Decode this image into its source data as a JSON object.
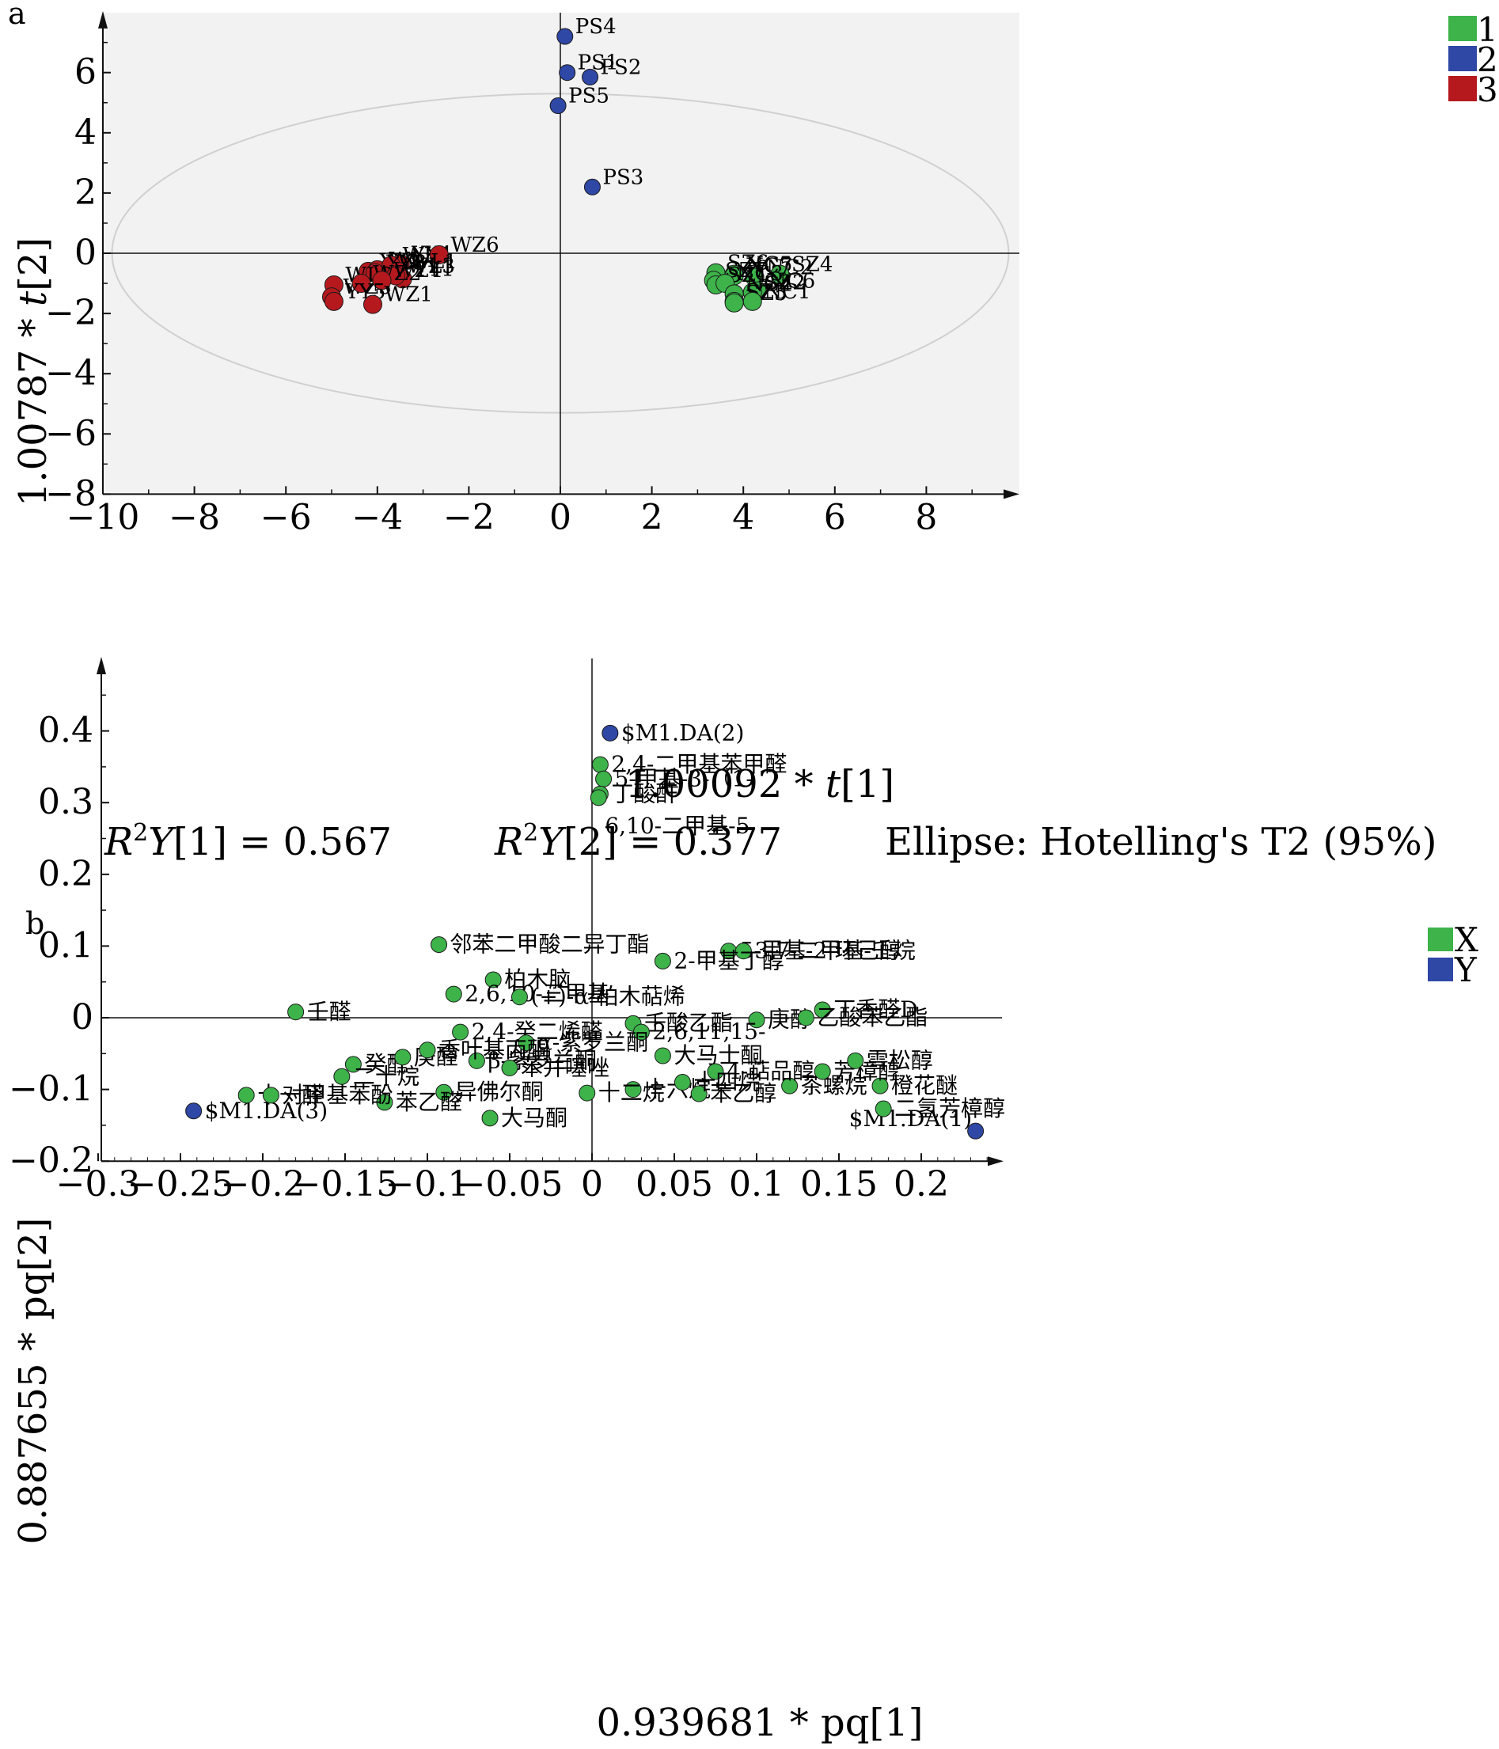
{
  "chart_data": [
    {
      "panel_label": "a",
      "type": "scatter",
      "xlabel_prefix": "1.00092 * ",
      "xlabel_var": "t",
      "xlabel_suffix": "[1]",
      "ylabel_prefix": "1.00787 * ",
      "ylabel_var": "t",
      "ylabel_suffix": "[2]",
      "xlim": [
        -10,
        10
      ],
      "ylim": [
        -8,
        8
      ],
      "xticks": [
        -10,
        -8,
        -6,
        -4,
        -2,
        0,
        2,
        4,
        6,
        8
      ],
      "yticks": [
        -8,
        -6,
        -4,
        -2,
        0,
        2,
        4,
        6
      ],
      "ellipse": {
        "rx": 9.8,
        "ry": 5.3
      },
      "legend": [
        {
          "name": "1",
          "color": "#3db34a"
        },
        {
          "name": "2",
          "color": "#2f47a5"
        },
        {
          "name": "3",
          "color": "#b5191e"
        }
      ],
      "footer": [
        {
          "id": "r2y1",
          "prefix": "R",
          "sup": "2",
          "var": "Y",
          "rest": "[1] = 0.567"
        },
        {
          "id": "r2y2",
          "prefix": "R",
          "sup": "2",
          "var": "Y",
          "rest": "[2] = 0.377"
        },
        {
          "id": "ellipse-note",
          "text": "Ellipse: Hotelling's T2 (95%)"
        }
      ],
      "series": [
        {
          "group": "1",
          "color": "#3db34a",
          "points": [
            {
              "label": "SZ6",
              "x": 3.4,
              "y": -0.65
            },
            {
              "label": "NC5",
              "x": 3.8,
              "y": -0.7
            },
            {
              "label": "NC2",
              "x": 4.25,
              "y": -0.8
            },
            {
              "label": "SZ4",
              "x": 4.8,
              "y": -0.7
            },
            {
              "label": "NC7",
              "x": 3.8,
              "y": -0.75
            },
            {
              "label": "SZ7",
              "x": 3.35,
              "y": -0.9
            },
            {
              "label": "SZ1",
              "x": 3.4,
              "y": -1.05
            },
            {
              "label": "NC6",
              "x": 4.3,
              "y": -1.25
            },
            {
              "label": "SZ2",
              "x": 4.2,
              "y": -1.3
            },
            {
              "label": "NC3",
              "x": 3.6,
              "y": -1.0
            },
            {
              "label": "NC4",
              "x": 3.8,
              "y": -1.35
            },
            {
              "label": "SZ3",
              "x": 3.8,
              "y": -1.6
            },
            {
              "label": "SZ5",
              "x": 3.8,
              "y": -1.65
            },
            {
              "label": "NC1",
              "x": 4.2,
              "y": -1.6
            }
          ]
        },
        {
          "group": "2",
          "color": "#2f47a5",
          "points": [
            {
              "label": "PS4",
              "x": 0.1,
              "y": 7.2
            },
            {
              "label": "PS1",
              "x": 0.15,
              "y": 6.0
            },
            {
              "label": "PS2",
              "x": 0.65,
              "y": 5.85
            },
            {
              "label": "PS5",
              "x": -0.05,
              "y": 4.9
            },
            {
              "label": "PS3",
              "x": 0.7,
              "y": 2.2
            }
          ]
        },
        {
          "group": "3",
          "color": "#b5191e",
          "points": [
            {
              "label": "YY2",
              "x": -4.2,
              "y": -0.6
            },
            {
              "label": "YY4",
              "x": -3.5,
              "y": -0.35
            },
            {
              "label": "WL4",
              "x": -4.0,
              "y": -0.55
            },
            {
              "label": "WL5",
              "x": -3.7,
              "y": -0.4
            },
            {
              "label": "WZ6",
              "x": -2.65,
              "y": -0.05
            },
            {
              "label": "YY3",
              "x": -4.05,
              "y": -0.65
            },
            {
              "label": "WL1",
              "x": -3.55,
              "y": -0.6
            },
            {
              "label": "YY1",
              "x": -3.45,
              "y": -0.85
            },
            {
              "label": "WL2",
              "x": -4.95,
              "y": -1.05
            },
            {
              "label": "WL3",
              "x": -3.6,
              "y": -0.75
            },
            {
              "label": "WZ3",
              "x": -5.0,
              "y": -1.45
            },
            {
              "label": "WZ2",
              "x": -4.35,
              "y": -1.0
            },
            {
              "label": "WZ4",
              "x": -3.9,
              "y": -0.9
            },
            {
              "label": "YY5",
              "x": -4.95,
              "y": -1.6
            },
            {
              "label": "WZ1",
              "x": -4.1,
              "y": -1.7
            }
          ]
        }
      ]
    },
    {
      "panel_label": "b",
      "type": "scatter",
      "xlabel": "0.939681 * pq[1]",
      "ylabel": "0.887655 * pq[2]",
      "xlim": [
        -0.3,
        0.25
      ],
      "ylim": [
        -0.2,
        0.5
      ],
      "xticks": [
        -0.3,
        -0.25,
        -0.2,
        -0.15,
        -0.1,
        -0.05,
        0,
        0.05,
        0.1,
        0.15,
        0.2
      ],
      "xticklabels": [
        "−0.3",
        "−0.25",
        "−0.2",
        "−0.15",
        "−0.1",
        "−0.05",
        "0",
        "0.05",
        "0.1",
        "0.15",
        "0.2"
      ],
      "yticks": [
        -0.2,
        -0.1,
        0,
        0.1,
        0.2,
        0.3,
        0.4
      ],
      "yticklabels": [
        "−0.2",
        "−0.1",
        "0",
        "0.1",
        "0.2",
        "0.3",
        "0.4"
      ],
      "legend": [
        {
          "name": "X",
          "color": "#3db34a"
        },
        {
          "name": "Y",
          "color": "#2f47a5"
        }
      ],
      "series": [
        {
          "name": "Y",
          "color": "#2f47a5",
          "points": [
            {
              "label": "$M1.DA(2)",
              "x": 0.011,
              "y": 0.397
            },
            {
              "label": "$M1.DA(3)",
              "x": -0.242,
              "y": -0.13
            },
            {
              "label": "$M1.DA(1)",
              "x": 0.233,
              "y": -0.158
            }
          ]
        },
        {
          "name": "X",
          "color": "#3db34a",
          "points": [
            {
              "label": "2,4-二甲基苯甲醛",
              "x": 0.005,
              "y": 0.353
            },
            {
              "label": "5-甲基-3-（1-",
              "x": 0.007,
              "y": 0.333
            },
            {
              "label": "丁酸酐",
              "x": 0.005,
              "y": 0.312
            },
            {
              "label": "6,10-二甲基-5",
              "x": 0.004,
              "y": 0.307
            },
            {
              "label": "邻苯二甲酸二异丁酯",
              "x": -0.093,
              "y": 0.102
            },
            {
              "label": "柏木脑",
              "x": -0.06,
              "y": 0.053
            },
            {
              "label": "2,6,10-三甲基",
              "x": -0.084,
              "y": 0.033
            },
            {
              "label": "(+)-α-柏木萜烯",
              "x": -0.044,
              "y": 0.029
            },
            {
              "label": "壬醛",
              "x": -0.18,
              "y": 0.008
            },
            {
              "label": "5-甲基-2-环己醇",
              "x": 0.083,
              "y": 0.093
            },
            {
              "label": "3,7-二甲基-壬烷",
              "x": 0.092,
              "y": 0.093
            },
            {
              "label": "2-甲基丁醇",
              "x": 0.043,
              "y": 0.079
            },
            {
              "label": "丁香醛D",
              "x": 0.14,
              "y": 0.011
            },
            {
              "label": "庚醇",
              "x": 0.1,
              "y": -0.003
            },
            {
              "label": "乙酸苯乙酯",
              "x": 0.13,
              "y": 0.0
            },
            {
              "label": "壬酸乙酯",
              "x": 0.025,
              "y": -0.008
            },
            {
              "label": "2,6,11,15-",
              "x": 0.03,
              "y": -0.02
            },
            {
              "label": "大马士酮",
              "x": 0.043,
              "y": -0.053
            },
            {
              "label": "十六烷",
              "x": 0.025,
              "y": -0.1
            },
            {
              "label": "苯乙醇",
              "x": 0.065,
              "y": -0.106
            },
            {
              "label": "橙花醚",
              "x": 0.175,
              "y": -0.095
            },
            {
              "label": "二氢芳樟醇",
              "x": 0.177,
              "y": -0.127
            },
            {
              "label": "十二烷",
              "x": -0.003,
              "y": -0.105
            },
            {
              "label": "大马酮",
              "x": -0.062,
              "y": -0.14
            },
            {
              "label": "异佛尔酮",
              "x": -0.09,
              "y": -0.104
            },
            {
              "label": "苯乙醛",
              "x": -0.126,
              "y": -0.118
            },
            {
              "label": "十一醛",
              "x": -0.21,
              "y": -0.108
            },
            {
              "label": "对甲基苯酚",
              "x": -0.195,
              "y": -0.108
            },
            {
              "label": "癸醛",
              "x": -0.145,
              "y": -0.065
            },
            {
              "label": "二十烷",
              "x": -0.152,
              "y": -0.082
            },
            {
              "label": "庚醛",
              "x": -0.115,
              "y": -0.055
            },
            {
              "label": "2,4-癸二烯醛",
              "x": -0.08,
              "y": -0.02
            },
            {
              "label": "α-紫罗兰酮",
              "x": -0.04,
              "y": -0.035
            },
            {
              "label": "β-紫罗兰酮",
              "x": -0.07,
              "y": -0.06
            },
            {
              "label": "苯并噻唑",
              "x": -0.05,
              "y": -0.07
            },
            {
              "label": "香叶基丙酮",
              "x": -0.1,
              "y": -0.045
            },
            {
              "label": "茶螺烷",
              "x": 0.12,
              "y": -0.095
            },
            {
              "label": "芳樟醇",
              "x": 0.14,
              "y": -0.075
            },
            {
              "label": "雪松醇",
              "x": 0.16,
              "y": -0.06
            },
            {
              "label": "4-萜品醇",
              "x": 0.075,
              "y": -0.075
            },
            {
              "label": "十四烷",
              "x": 0.055,
              "y": -0.09
            }
          ]
        }
      ]
    }
  ]
}
